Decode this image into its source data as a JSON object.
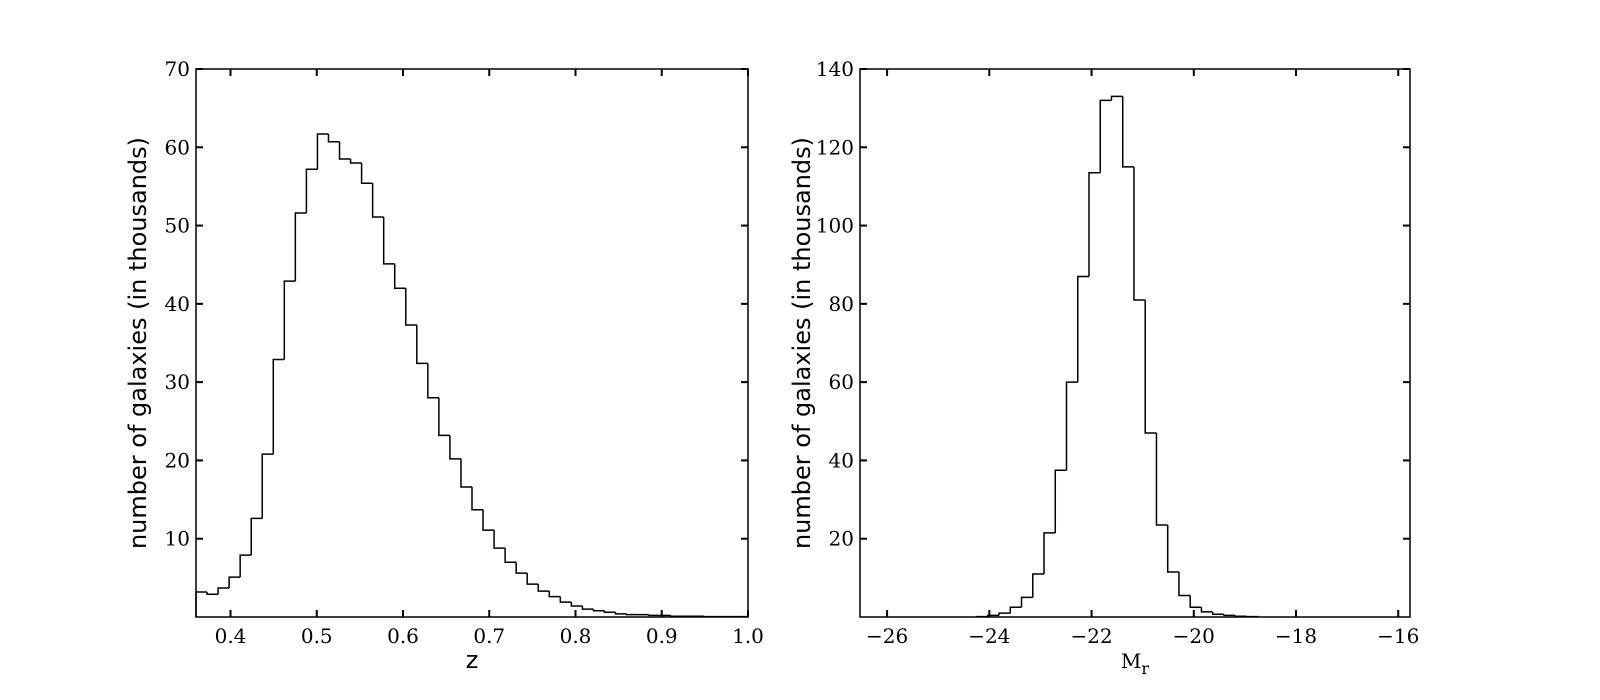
{
  "chart_data": [
    {
      "type": "histogram",
      "xlabel": "z",
      "ylabel": "number of galaxies (in thousands)",
      "color": "#000000",
      "xlim": [
        0.36,
        1.0
      ],
      "ylim": [
        0,
        70
      ],
      "xticks": [
        0.4,
        0.5,
        0.6,
        0.7,
        0.8,
        0.9,
        {
          "value": 1,
          "label": "1.0"
        }
      ],
      "yticks": [
        10,
        20,
        30,
        40,
        50,
        60,
        70
      ],
      "bins": [
        0.36,
        0.3728,
        0.3856,
        0.3984,
        0.4112,
        0.424,
        0.4368,
        0.4496,
        0.4624,
        0.4752,
        0.488,
        0.5008,
        0.5136,
        0.5264,
        0.5392,
        0.552,
        0.5648,
        0.5776,
        0.5904,
        0.6032,
        0.616,
        0.6288,
        0.6416,
        0.6544,
        0.6672,
        0.68,
        0.6928,
        0.7056,
        0.7184,
        0.7312,
        0.744,
        0.7568,
        0.7696,
        0.7824,
        0.7952,
        0.808,
        0.8208,
        0.8336,
        0.8464,
        0.8592,
        0.872,
        0.8848,
        0.8976,
        0.9104,
        0.9232,
        0.936,
        0.9488,
        0.9616,
        0.9744,
        0.9872,
        1.0
      ],
      "values": [
        3.2,
        2.9,
        3.7,
        5.1,
        7.9,
        12.6,
        20.8,
        32.9,
        42.9,
        51.6,
        57.2,
        61.7,
        60.7,
        58.5,
        58.0,
        55.4,
        51.1,
        45.1,
        42.0,
        37.3,
        32.4,
        28.0,
        23.2,
        20.2,
        16.6,
        13.7,
        11.1,
        8.8,
        7.0,
        5.6,
        4.2,
        3.3,
        2.6,
        1.9,
        1.4,
        1.0,
        0.8,
        0.6,
        0.4,
        0.3,
        0.3,
        0.2,
        0.2,
        0.1,
        0.1,
        0.1,
        0.05,
        0.05,
        0.05,
        0.05
      ]
    },
    {
      "type": "histogram",
      "xlabel": "M",
      "xlabel_sub": "r",
      "ylabel": "number of galaxies (in thousands)",
      "color": "#000000",
      "xlim": [
        -26.53,
        -15.77
      ],
      "ylim": [
        0,
        140
      ],
      "xticks": [
        {
          "value": -26,
          "label": "−26"
        },
        {
          "value": -24,
          "label": "−24"
        },
        {
          "value": -22,
          "label": "−22"
        },
        {
          "value": -20,
          "label": "−20"
        },
        {
          "value": -18,
          "label": "−18"
        },
        {
          "value": -16,
          "label": "−16"
        }
      ],
      "yticks": [
        20,
        40,
        60,
        80,
        100,
        120,
        140
      ],
      "bins": [
        -24.25,
        -24.03,
        -23.81,
        -23.59,
        -23.37,
        -23.15,
        -22.93,
        -22.71,
        -22.49,
        -22.27,
        -22.05,
        -21.83,
        -21.61,
        -21.39,
        -21.17,
        -20.95,
        -20.73,
        -20.51,
        -20.29,
        -20.07,
        -19.85,
        -19.63,
        -19.41,
        -19.19,
        -18.97,
        -18.75
      ],
      "values": [
        0.1,
        0.4,
        1,
        2.5,
        5,
        11,
        21.5,
        37.5,
        60,
        87,
        113.5,
        132,
        133,
        115,
        81,
        47,
        23.5,
        11.5,
        5.5,
        2.5,
        1.3,
        0.7,
        0.4,
        0.2,
        0.1
      ]
    }
  ]
}
